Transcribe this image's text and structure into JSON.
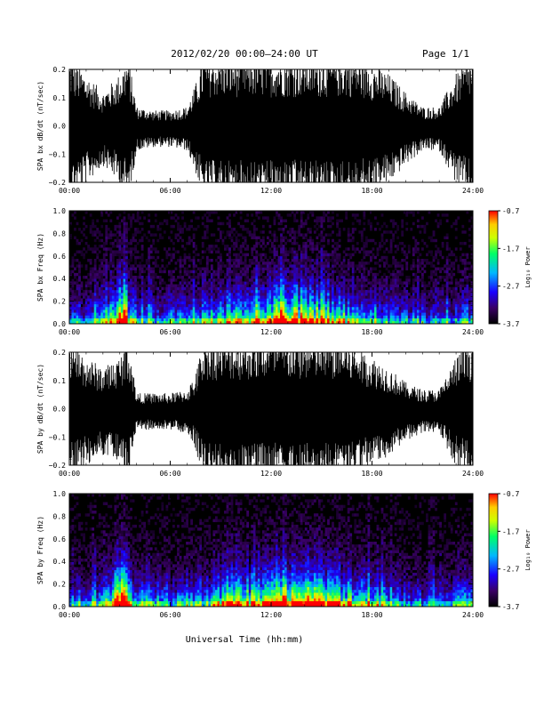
{
  "header": {
    "title": "2012/02/20  00:00–24:00 UT",
    "page": "Page 1/1"
  },
  "footer": {
    "xlabel": "Universal Time (hh:mm)"
  },
  "colorbar": {
    "label": "Log₁₀ Power",
    "ticks": [
      "-0.7",
      "-1.7",
      "-2.7",
      "-3.7"
    ],
    "range": [
      -3.7,
      -0.7
    ],
    "colormap": [
      "#000000",
      "#3a0066",
      "#1a00ff",
      "#00b7ff",
      "#00ff66",
      "#ccff00",
      "#ffcc00",
      "#ff0000"
    ]
  },
  "chart_data": [
    {
      "type": "line",
      "ylabel": "SPA bx dB/dt (nT/sec)",
      "xlim": [
        "00:00",
        "24:00"
      ],
      "ylim": [
        -0.2,
        0.2
      ],
      "x_ticks": [
        "00:00",
        "06:00",
        "12:00",
        "18:00",
        "24:00"
      ],
      "y_ticks": [
        "0.2",
        "0.1",
        "0.0",
        "−0.1",
        "−0.2"
      ],
      "envelope_hours": [
        0,
        1,
        2,
        3,
        3.5,
        4,
        5,
        6,
        7,
        7.5,
        8,
        9,
        10,
        11,
        12,
        13,
        14,
        15,
        16,
        17,
        18,
        19,
        20,
        21,
        22,
        23,
        24
      ],
      "envelope_amplitude": [
        0.2,
        0.15,
        0.1,
        0.15,
        0.2,
        0.06,
        0.05,
        0.05,
        0.06,
        0.12,
        0.2,
        0.2,
        0.2,
        0.2,
        0.2,
        0.2,
        0.2,
        0.2,
        0.2,
        0.2,
        0.18,
        0.15,
        0.1,
        0.06,
        0.06,
        0.15,
        0.2
      ],
      "series_color": "#000000"
    },
    {
      "type": "heatmap",
      "ylabel": "SPA bx Freq (Hz)",
      "xlim": [
        "00:00",
        "24:00"
      ],
      "ylim": [
        0.0,
        1.0
      ],
      "x_ticks": [
        "00:00",
        "06:00",
        "12:00",
        "18:00",
        "24:00"
      ],
      "y_ticks": [
        "1.0",
        "0.8",
        "0.6",
        "0.4",
        "0.2",
        "0.0"
      ],
      "clim": [
        -3.7,
        -0.7
      ],
      "activity_hours": [
        0,
        2,
        3.3,
        3.6,
        5,
        8,
        10,
        12,
        12.5,
        13,
        14,
        16,
        18,
        20,
        22,
        24
      ],
      "activity_level": [
        0.3,
        0.35,
        1.0,
        0.5,
        0.3,
        0.4,
        0.6,
        0.6,
        0.95,
        0.7,
        0.75,
        0.55,
        0.45,
        0.3,
        0.3,
        0.35
      ]
    },
    {
      "type": "line",
      "ylabel": "SPA by dB/dt (nT/sec)",
      "xlim": [
        "00:00",
        "24:00"
      ],
      "ylim": [
        -0.2,
        0.2
      ],
      "x_ticks": [
        "00:00",
        "06:00",
        "12:00",
        "18:00",
        "24:00"
      ],
      "y_ticks": [
        "0.2",
        "0.1",
        "0.0",
        "−0.1",
        "−0.2"
      ],
      "envelope_hours": [
        0,
        1,
        2,
        3,
        3.5,
        4,
        5,
        6,
        7,
        7.5,
        8,
        9,
        10,
        11,
        12,
        13,
        14,
        15,
        16,
        17,
        18,
        19,
        20,
        21,
        22,
        23,
        24
      ],
      "envelope_amplitude": [
        0.2,
        0.15,
        0.12,
        0.15,
        0.2,
        0.05,
        0.05,
        0.05,
        0.06,
        0.1,
        0.2,
        0.2,
        0.2,
        0.2,
        0.2,
        0.2,
        0.2,
        0.2,
        0.2,
        0.18,
        0.15,
        0.12,
        0.08,
        0.06,
        0.06,
        0.15,
        0.2
      ],
      "series_color": "#000000"
    },
    {
      "type": "heatmap",
      "ylabel": "SPA by Freq (Hz)",
      "xlim": [
        "00:00",
        "24:00"
      ],
      "ylim": [
        0.0,
        1.0
      ],
      "x_ticks": [
        "00:00",
        "06:00",
        "12:00",
        "18:00",
        "24:00"
      ],
      "y_ticks": [
        "1.0",
        "0.8",
        "0.6",
        "0.4",
        "0.2",
        "0.0"
      ],
      "clim": [
        -3.7,
        -0.7
      ],
      "activity_hours": [
        0,
        2,
        3.3,
        3.6,
        5,
        8,
        10,
        12,
        12.5,
        13,
        14,
        16,
        18,
        20,
        22,
        24
      ],
      "activity_level": [
        0.35,
        0.4,
        1.0,
        0.55,
        0.35,
        0.4,
        0.65,
        0.6,
        0.95,
        0.7,
        0.75,
        0.6,
        0.5,
        0.3,
        0.3,
        0.4
      ]
    }
  ]
}
